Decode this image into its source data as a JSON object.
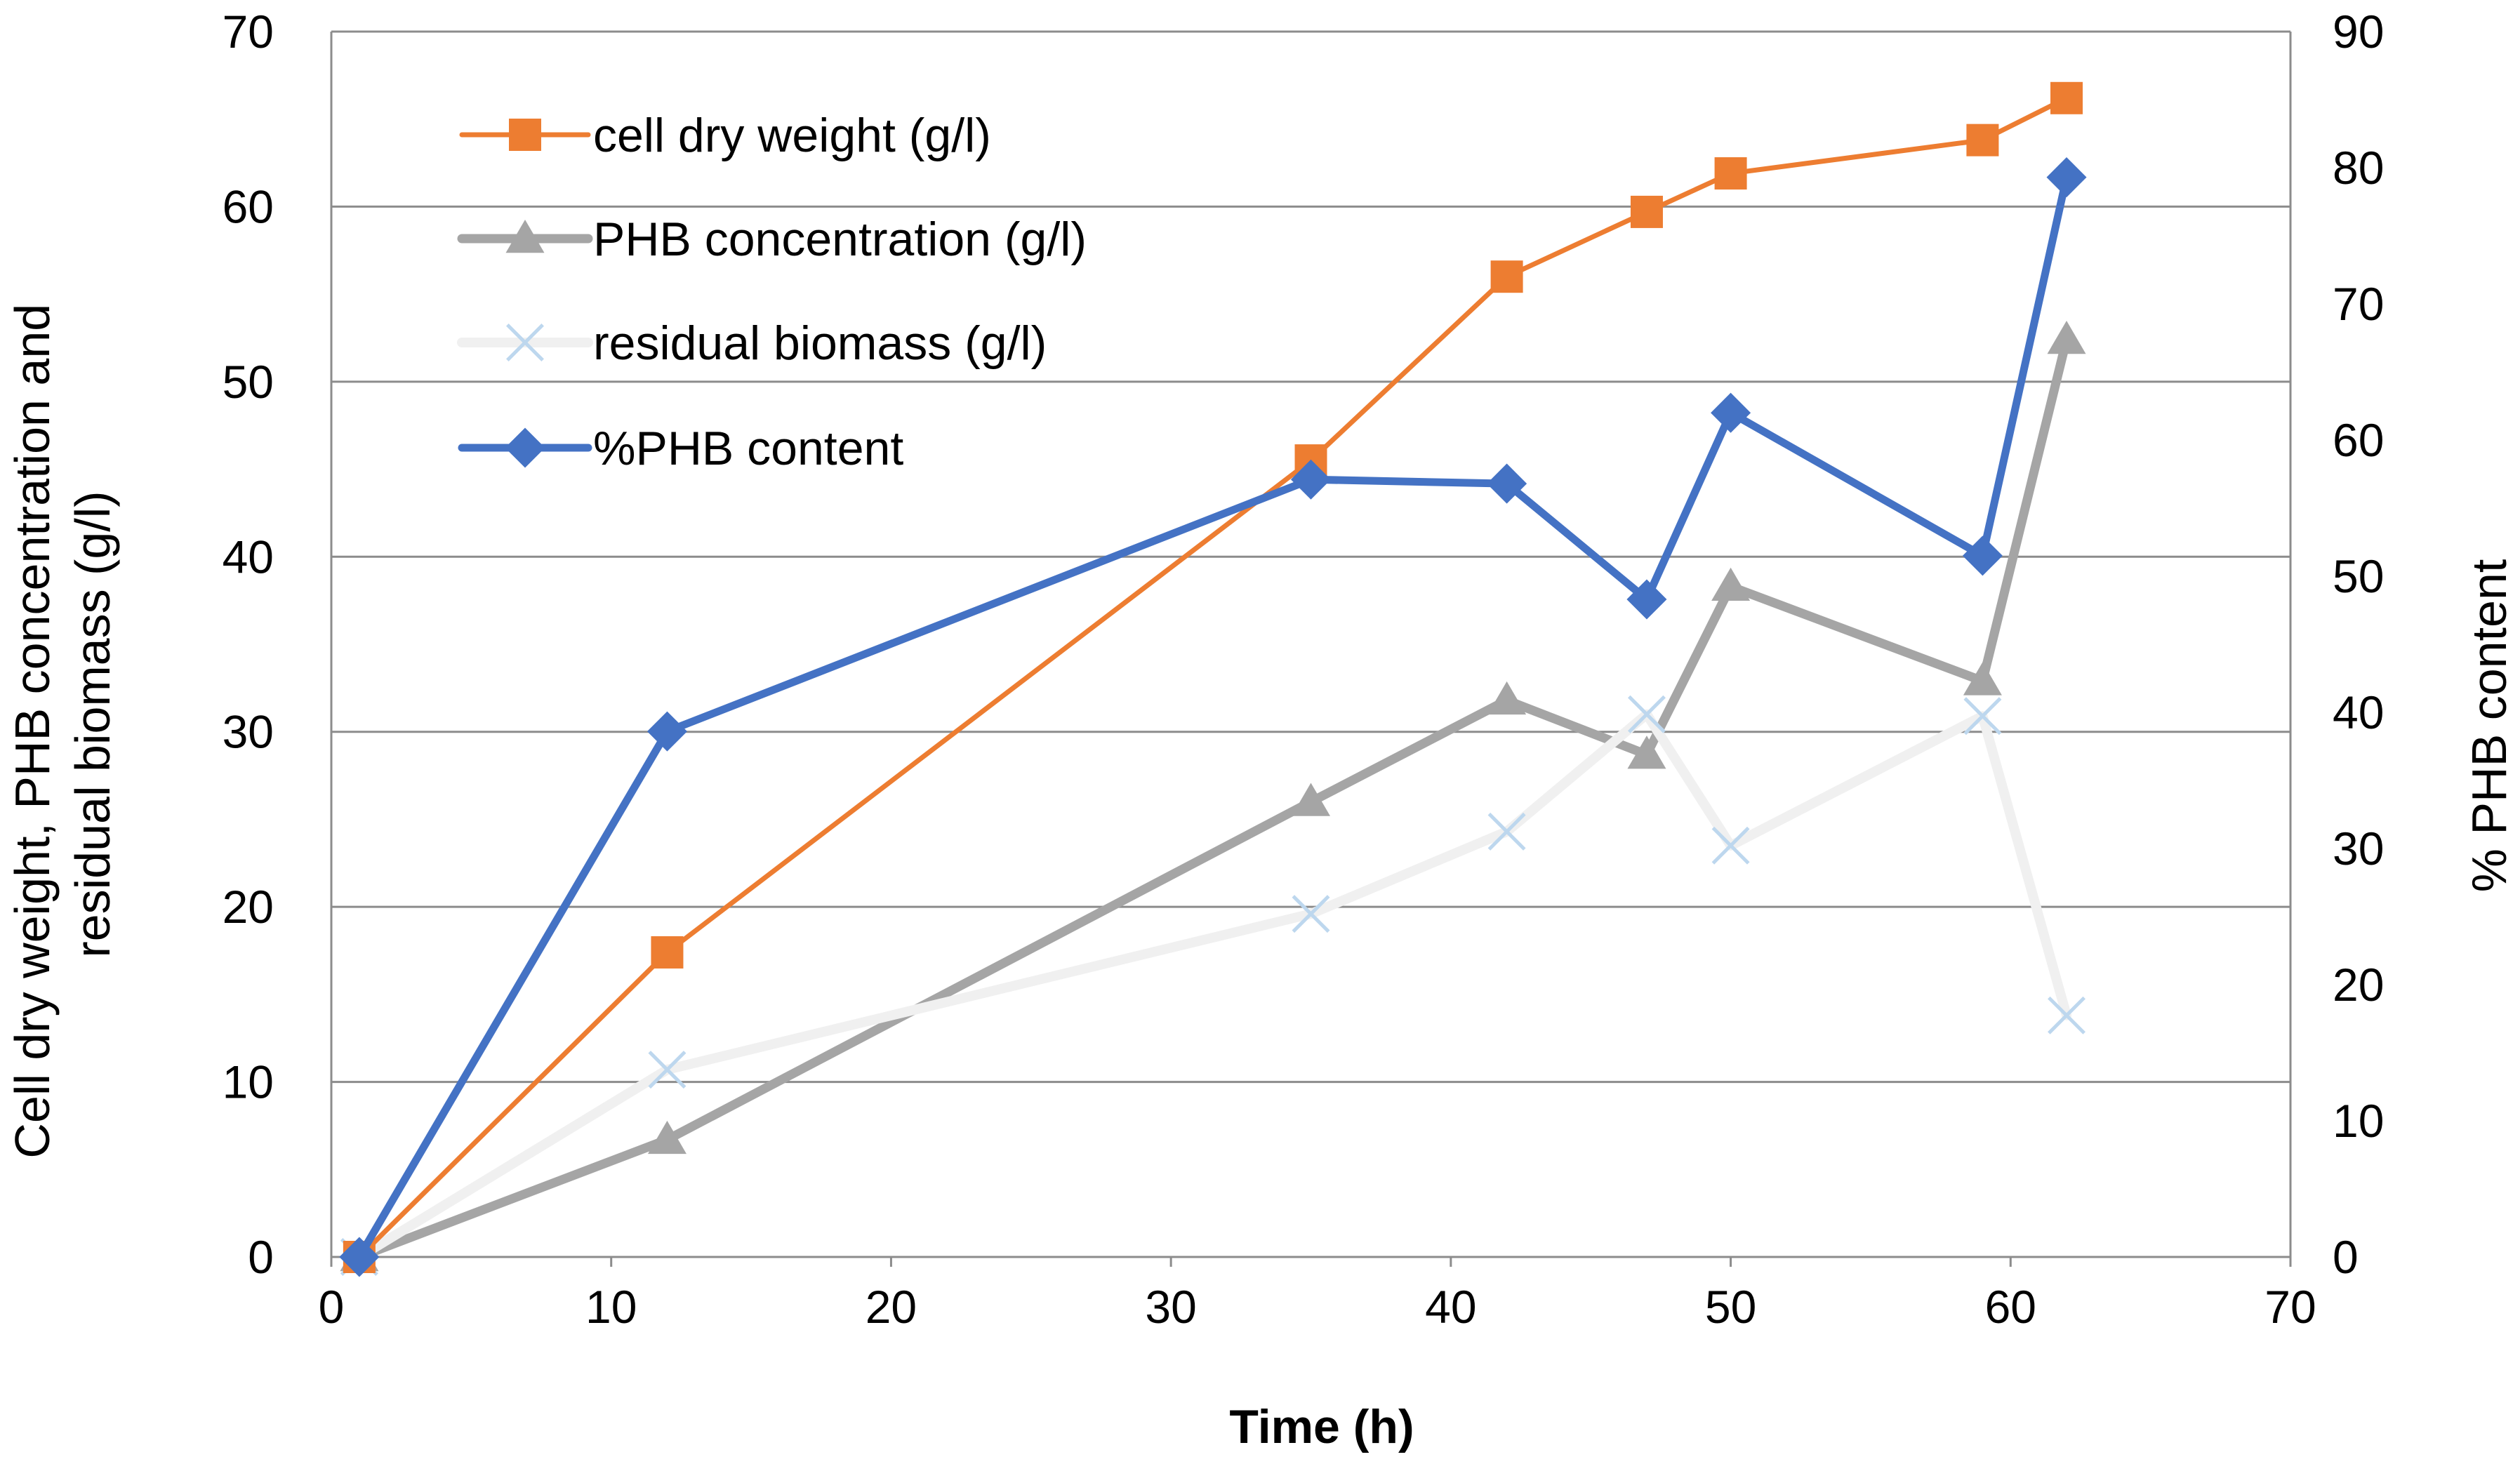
{
  "chart_data": {
    "type": "line",
    "xlabel": "Time (h)",
    "ylabel": "Cell dry weight, PHB concentration and residual biomass (g/l)",
    "ylabel_lines": [
      "Cell dry weight, PHB concentration and",
      "residual biomass (g/l)"
    ],
    "y2label": "% PHB content",
    "xlim": [
      0,
      70
    ],
    "ylim": [
      0,
      70
    ],
    "y2lim": [
      0,
      90
    ],
    "xticks": [
      "0",
      "10",
      "20",
      "30",
      "40",
      "50",
      "60",
      "70"
    ],
    "yticks": [
      "0",
      "10",
      "20",
      "30",
      "40",
      "50",
      "60",
      "70"
    ],
    "y2ticks": [
      "0",
      "10",
      "20",
      "30",
      "40",
      "50",
      "60",
      "70",
      "80",
      "90"
    ],
    "grid": "horizontal",
    "legend_position": "top-left",
    "series": [
      {
        "name": "cell dry weight (g/l)",
        "axis": "left",
        "color": "#ED7D31",
        "marker": "square",
        "x": [
          1,
          12,
          35,
          42,
          47,
          50,
          59,
          62
        ],
        "values": [
          0,
          17.4,
          45.5,
          56,
          59.7,
          61.9,
          63.8,
          66.2
        ]
      },
      {
        "name": "PHB concentration (g/l)",
        "axis": "left",
        "color": "#A5A5A5",
        "marker": "triangle",
        "x": [
          1,
          12,
          35,
          42,
          47,
          50,
          59,
          62
        ],
        "values": [
          0,
          6.7,
          26,
          31.8,
          28.7,
          38.3,
          32.9,
          52.4
        ]
      },
      {
        "name": "residual biomass (g/l)",
        "axis": "left",
        "color": "#F0F0F0",
        "marker_color": "#BDD7EE",
        "marker": "x",
        "x": [
          1,
          12,
          35,
          42,
          47,
          50,
          59,
          62
        ],
        "values": [
          0,
          10.7,
          19.6,
          24.3,
          31,
          23.5,
          30.9,
          13.8
        ]
      },
      {
        "name": "%PHB content",
        "axis": "right",
        "color": "#4472C4",
        "marker": "diamond",
        "x": [
          1,
          12,
          35,
          42,
          47,
          50,
          59,
          62
        ],
        "values": [
          0,
          38.6,
          57.1,
          56.8,
          48.3,
          62,
          51.5,
          79.3
        ]
      }
    ]
  }
}
